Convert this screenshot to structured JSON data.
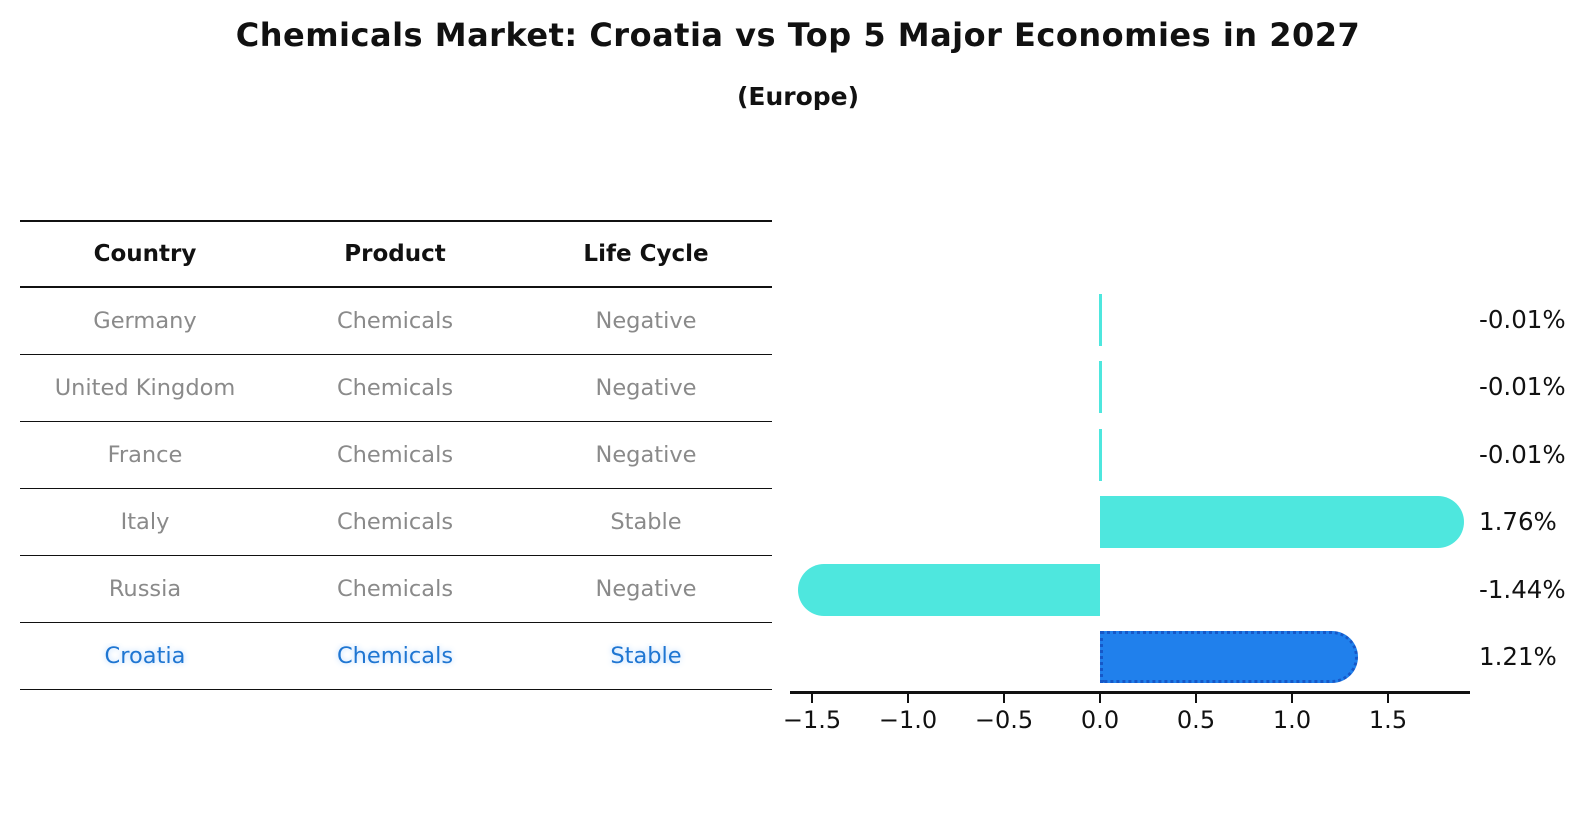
{
  "title": "Chemicals Market: Croatia vs Top 5 Major Economies in 2027",
  "subtitle": "(Europe)",
  "table": {
    "headers": [
      "Country",
      "Product",
      "Life Cycle"
    ],
    "rows": [
      {
        "country": "Germany",
        "product": "Chemicals",
        "life_cycle": "Negative",
        "highlight": false
      },
      {
        "country": "United Kingdom",
        "product": "Chemicals",
        "life_cycle": "Negative",
        "highlight": false
      },
      {
        "country": "France",
        "product": "Chemicals",
        "life_cycle": "Negative",
        "highlight": false
      },
      {
        "country": "Italy",
        "product": "Chemicals",
        "life_cycle": "Stable",
        "highlight": false
      },
      {
        "country": "Russia",
        "product": "Chemicals",
        "life_cycle": "Negative",
        "highlight": false
      },
      {
        "country": "Croatia",
        "product": "Chemicals",
        "life_cycle": "Stable",
        "highlight": true
      }
    ]
  },
  "chart_data": {
    "type": "bar",
    "orientation": "horizontal",
    "title": "Chemicals Market: Croatia vs Top 5 Major Economies in 2027",
    "subtitle": "(Europe)",
    "categories": [
      "Germany",
      "United Kingdom",
      "France",
      "Italy",
      "Russia",
      "Croatia"
    ],
    "values": [
      -0.01,
      -0.01,
      -0.01,
      1.76,
      -1.44,
      1.21
    ],
    "value_labels": [
      "-0.01%",
      "-0.01%",
      "-0.01%",
      "1.76%",
      "-1.44%",
      "1.21%"
    ],
    "highlight_category": "Croatia",
    "x_tick_labels": [
      "−1.5",
      "−1.0",
      "−0.5",
      "0.0",
      "0.5",
      "1.0",
      "1.5"
    ],
    "x_tick_values": [
      -1.5,
      -1.0,
      -0.5,
      0.0,
      0.5,
      1.0,
      1.5
    ],
    "xlim": [
      -1.61,
      1.93
    ],
    "grid": false,
    "legend": "none",
    "colors": {
      "bar_default": "#4EE7DE",
      "bar_highlight": "#2080EC",
      "bar_highlight_border": "#1658C8",
      "axis": "#111111",
      "text_gray": "#8a8a8a",
      "text_highlight": "#1f76d2",
      "background": "#ffffff"
    }
  }
}
